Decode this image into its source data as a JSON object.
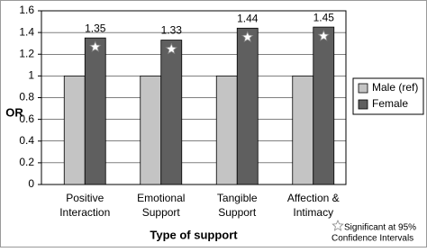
{
  "chart_data": {
    "type": "bar",
    "categories": [
      "Positive Interaction",
      "Emotional Support",
      "Tangible Support",
      "Affection & Intimacy"
    ],
    "series": [
      {
        "name": "Male (ref)",
        "color": "#c4c4c4",
        "values": [
          1,
          1,
          1,
          1
        ]
      },
      {
        "name": "Female",
        "color": "#5f5f5f",
        "values": [
          1.35,
          1.33,
          1.44,
          1.45
        ]
      }
    ],
    "labeled_series": 1,
    "ylim": [
      0,
      1.6
    ],
    "yticks": [
      0,
      0.2,
      0.4,
      0.6,
      0.8,
      1,
      1.2,
      1.4,
      1.6
    ],
    "grid": true,
    "ylabel": "OR",
    "xlabel": "Type of support",
    "legend": "right",
    "annotation": [
      "Significant at 95%",
      "Confidence Intervals"
    ]
  }
}
